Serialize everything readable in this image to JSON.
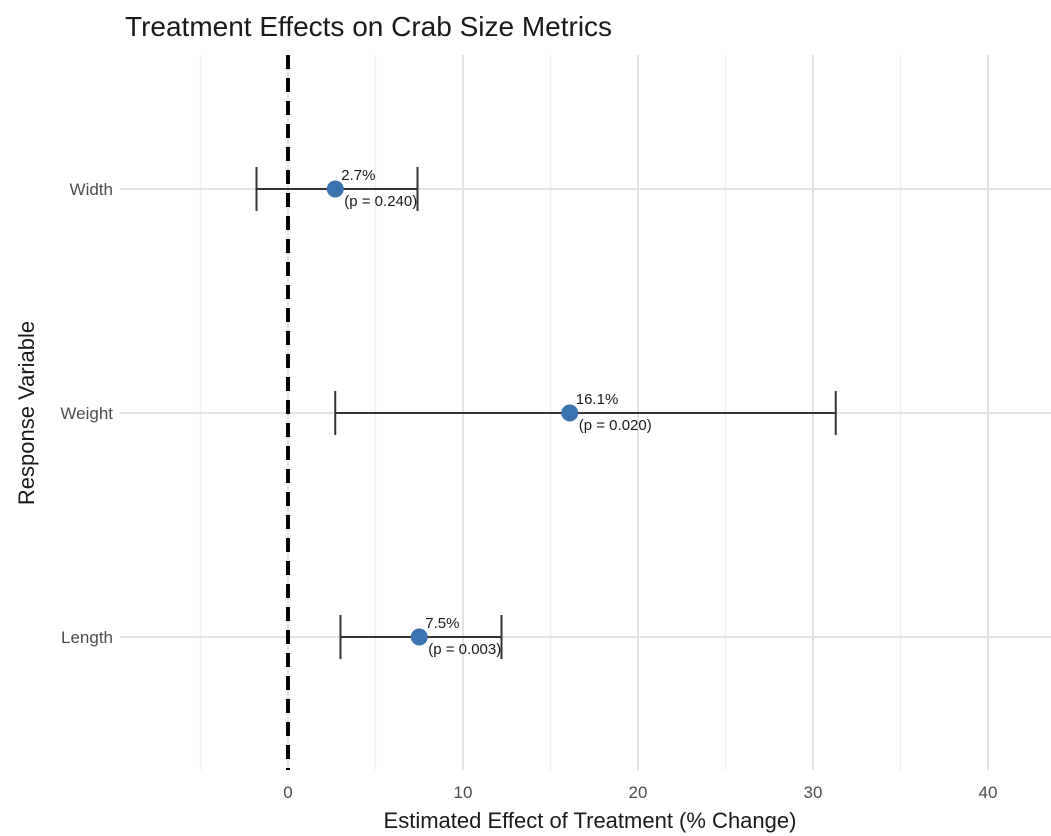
{
  "chart_data": {
    "type": "scatter",
    "title": "Treatment Effects on Crab Size Metrics",
    "xlabel": "Estimated Effect of Treatment (% Change)",
    "ylabel": "Response Variable",
    "xlim": [
      -5,
      44
    ],
    "x_ticks": [
      0,
      10,
      20,
      30,
      40
    ],
    "x_minor_ticks": [
      -5,
      5,
      15,
      25,
      35
    ],
    "categories": [
      "Width",
      "Weight",
      "Length"
    ],
    "reference_line": 0,
    "grid": true,
    "point_color": "#3a73b0",
    "points": [
      {
        "category": "Width",
        "estimate": 2.7,
        "ci_low": -1.8,
        "ci_high": 7.4,
        "label": "2.7%",
        "p_label": "(p = 0.240)"
      },
      {
        "category": "Weight",
        "estimate": 16.1,
        "ci_low": 2.7,
        "ci_high": 31.3,
        "label": "16.1%",
        "p_label": "(p = 0.020)"
      },
      {
        "category": "Length",
        "estimate": 7.5,
        "ci_low": 3.0,
        "ci_high": 12.2,
        "label": "7.5%",
        "p_label": "(p = 0.003)"
      }
    ]
  }
}
